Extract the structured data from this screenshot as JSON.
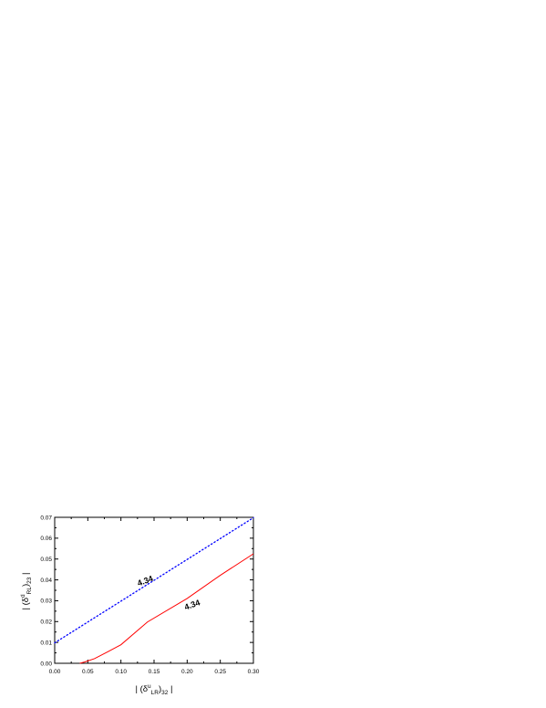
{
  "chart_data": {
    "type": "line",
    "title": "",
    "xlabel": {
      "open": "| (δ",
      "sup": "u",
      "sub1": "LR",
      "mid": ")",
      "sub2": "32",
      "close": " |"
    },
    "ylabel": {
      "open": "| (δ",
      "sup": "d",
      "sub1": "RL",
      "mid": ")",
      "sub2": "23",
      "close": " |"
    },
    "xlim": [
      0.0,
      0.3
    ],
    "ylim": [
      0.0,
      0.07
    ],
    "x_ticks": [
      "0.00",
      "0.05",
      "0.10",
      "0.15",
      "0.20",
      "0.25",
      "0.30"
    ],
    "y_ticks": [
      "0.00",
      "0.01",
      "0.02",
      "0.03",
      "0.04",
      "0.05",
      "0.06",
      "0.07"
    ],
    "grid": false,
    "legend": "none",
    "series": [
      {
        "label": "4.34",
        "style": "dotted",
        "color": "#0000ff",
        "x": [
          0.0,
          0.05,
          0.1,
          0.15,
          0.2,
          0.25,
          0.3
        ],
        "y": [
          0.0098,
          0.0198,
          0.0298,
          0.0398,
          0.0498,
          0.0598,
          0.0698
        ],
        "label_pos": [
          0.138,
          0.0383
        ],
        "label_angle": -20
      },
      {
        "label": "4.34",
        "style": "solid",
        "color": "#ff0000",
        "x": [
          0.038,
          0.045,
          0.06,
          0.08,
          0.1,
          0.14,
          0.2,
          0.25,
          0.3
        ],
        "y": [
          0.0,
          0.0006,
          0.0022,
          0.0055,
          0.0089,
          0.0198,
          0.0311,
          0.0422,
          0.0525
        ],
        "label_pos": [
          0.209,
          0.0268
        ],
        "label_angle": -20
      }
    ]
  }
}
